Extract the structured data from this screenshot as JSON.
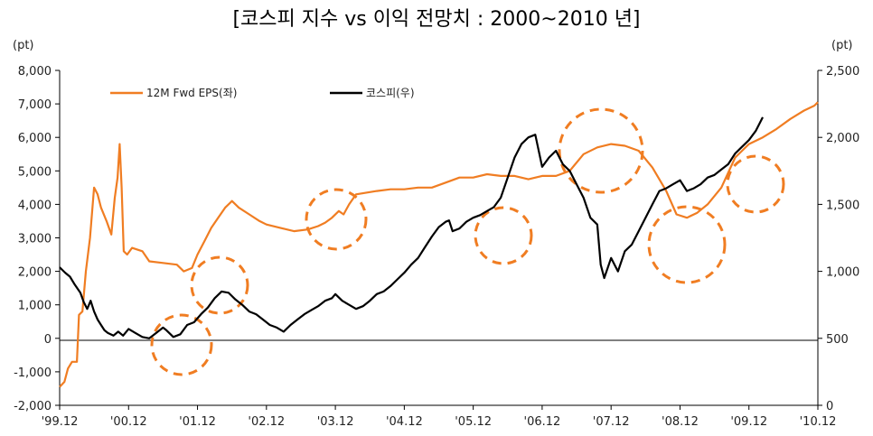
{
  "chart_data": {
    "type": "line",
    "title": "[코스피 지수 vs 이익 전망치 : 2000~2010 년]",
    "left_axis": {
      "unit": "(pt)",
      "range": [
        -2000,
        8000
      ],
      "ticks": [
        "-2,000",
        "-1,000",
        "0",
        "1,000",
        "2,000",
        "3,000",
        "4,000",
        "5,000",
        "6,000",
        "7,000",
        "8,000"
      ],
      "tick_values": [
        -2000,
        -1000,
        0,
        1000,
        2000,
        3000,
        4000,
        5000,
        6000,
        7000,
        8000
      ]
    },
    "right_axis": {
      "unit": "(pt)",
      "range": [
        0,
        2500
      ],
      "ticks": [
        "0",
        "500",
        "1,000",
        "1,500",
        "2,000",
        "2,500"
      ],
      "tick_values": [
        0,
        500,
        1000,
        1500,
        2000,
        2500
      ]
    },
    "x_axis": {
      "range": [
        0,
        11
      ],
      "ticks": [
        "'99.12",
        "'00.12",
        "'01.12",
        "'02.12",
        "'03.12",
        "'04.12",
        "'05.12",
        "'06.12",
        "'07.12",
        "'08.12",
        "'09.12",
        "'10.12"
      ]
    },
    "legend_position": "top-left",
    "series": [
      {
        "name": "12M Fwd EPS(좌)",
        "axis": "left",
        "color": "#F07D22",
        "points": [
          [
            0.0,
            -1450
          ],
          [
            0.07,
            -1300
          ],
          [
            0.12,
            -900
          ],
          [
            0.18,
            -700
          ],
          [
            0.25,
            -700
          ],
          [
            0.28,
            700
          ],
          [
            0.33,
            800
          ],
          [
            0.38,
            2000
          ],
          [
            0.44,
            3000
          ],
          [
            0.5,
            4500
          ],
          [
            0.55,
            4300
          ],
          [
            0.6,
            3900
          ],
          [
            0.68,
            3500
          ],
          [
            0.75,
            3100
          ],
          [
            0.8,
            4200
          ],
          [
            0.84,
            4800
          ],
          [
            0.87,
            5800
          ],
          [
            0.9,
            4500
          ],
          [
            0.93,
            2600
          ],
          [
            0.98,
            2500
          ],
          [
            1.05,
            2700
          ],
          [
            1.2,
            2600
          ],
          [
            1.3,
            2300
          ],
          [
            1.5,
            2250
          ],
          [
            1.7,
            2200
          ],
          [
            1.8,
            2000
          ],
          [
            1.92,
            2100
          ],
          [
            2.0,
            2500
          ],
          [
            2.1,
            2900
          ],
          [
            2.2,
            3300
          ],
          [
            2.3,
            3600
          ],
          [
            2.4,
            3900
          ],
          [
            2.5,
            4100
          ],
          [
            2.6,
            3900
          ],
          [
            2.75,
            3700
          ],
          [
            2.9,
            3500
          ],
          [
            3.0,
            3400
          ],
          [
            3.2,
            3300
          ],
          [
            3.4,
            3200
          ],
          [
            3.6,
            3250
          ],
          [
            3.75,
            3350
          ],
          [
            3.85,
            3450
          ],
          [
            3.95,
            3600
          ],
          [
            4.05,
            3800
          ],
          [
            4.12,
            3700
          ],
          [
            4.2,
            4000
          ],
          [
            4.3,
            4300
          ],
          [
            4.45,
            4350
          ],
          [
            4.6,
            4400
          ],
          [
            4.8,
            4450
          ],
          [
            5.0,
            4450
          ],
          [
            5.2,
            4500
          ],
          [
            5.4,
            4500
          ],
          [
            5.6,
            4650
          ],
          [
            5.8,
            4800
          ],
          [
            6.0,
            4800
          ],
          [
            6.2,
            4900
          ],
          [
            6.4,
            4850
          ],
          [
            6.6,
            4850
          ],
          [
            6.8,
            4750
          ],
          [
            7.0,
            4850
          ],
          [
            7.2,
            4850
          ],
          [
            7.4,
            5000
          ],
          [
            7.6,
            5500
          ],
          [
            7.8,
            5700
          ],
          [
            8.0,
            5800
          ],
          [
            8.2,
            5750
          ],
          [
            8.4,
            5600
          ],
          [
            8.6,
            5100
          ],
          [
            8.8,
            4400
          ],
          [
            8.95,
            3700
          ],
          [
            9.1,
            3600
          ],
          [
            9.25,
            3750
          ],
          [
            9.4,
            4000
          ],
          [
            9.6,
            4500
          ],
          [
            9.8,
            5400
          ],
          [
            10.0,
            5800
          ],
          [
            10.2,
            6000
          ],
          [
            10.4,
            6250
          ],
          [
            10.6,
            6550
          ],
          [
            10.8,
            6800
          ],
          [
            10.95,
            6950
          ],
          [
            11.0,
            7050
          ]
        ]
      },
      {
        "name": "코스피(우)",
        "axis": "right",
        "color": "#000000",
        "points": [
          [
            0.0,
            1030
          ],
          [
            0.08,
            990
          ],
          [
            0.15,
            960
          ],
          [
            0.22,
            900
          ],
          [
            0.3,
            840
          ],
          [
            0.35,
            770
          ],
          [
            0.4,
            720
          ],
          [
            0.45,
            780
          ],
          [
            0.5,
            700
          ],
          [
            0.55,
            640
          ],
          [
            0.6,
            600
          ],
          [
            0.65,
            560
          ],
          [
            0.7,
            540
          ],
          [
            0.78,
            520
          ],
          [
            0.85,
            550
          ],
          [
            0.92,
            520
          ],
          [
            1.0,
            570
          ],
          [
            1.1,
            540
          ],
          [
            1.2,
            510
          ],
          [
            1.3,
            500
          ],
          [
            1.4,
            540
          ],
          [
            1.5,
            580
          ],
          [
            1.55,
            560
          ],
          [
            1.65,
            510
          ],
          [
            1.75,
            530
          ],
          [
            1.85,
            600
          ],
          [
            1.95,
            620
          ],
          [
            2.05,
            680
          ],
          [
            2.15,
            730
          ],
          [
            2.25,
            800
          ],
          [
            2.35,
            850
          ],
          [
            2.45,
            840
          ],
          [
            2.55,
            790
          ],
          [
            2.65,
            750
          ],
          [
            2.75,
            700
          ],
          [
            2.85,
            680
          ],
          [
            2.95,
            640
          ],
          [
            3.05,
            600
          ],
          [
            3.15,
            580
          ],
          [
            3.25,
            550
          ],
          [
            3.35,
            600
          ],
          [
            3.45,
            640
          ],
          [
            3.55,
            680
          ],
          [
            3.65,
            710
          ],
          [
            3.75,
            740
          ],
          [
            3.85,
            780
          ],
          [
            3.95,
            800
          ],
          [
            4.0,
            830
          ],
          [
            4.1,
            780
          ],
          [
            4.2,
            750
          ],
          [
            4.3,
            720
          ],
          [
            4.4,
            740
          ],
          [
            4.5,
            780
          ],
          [
            4.6,
            830
          ],
          [
            4.7,
            850
          ],
          [
            4.8,
            890
          ],
          [
            4.9,
            940
          ],
          [
            5.0,
            990
          ],
          [
            5.1,
            1050
          ],
          [
            5.2,
            1100
          ],
          [
            5.3,
            1180
          ],
          [
            5.4,
            1260
          ],
          [
            5.5,
            1330
          ],
          [
            5.6,
            1370
          ],
          [
            5.65,
            1380
          ],
          [
            5.7,
            1300
          ],
          [
            5.8,
            1320
          ],
          [
            5.9,
            1370
          ],
          [
            6.0,
            1400
          ],
          [
            6.1,
            1420
          ],
          [
            6.2,
            1450
          ],
          [
            6.3,
            1480
          ],
          [
            6.4,
            1550
          ],
          [
            6.5,
            1700
          ],
          [
            6.6,
            1850
          ],
          [
            6.7,
            1950
          ],
          [
            6.8,
            2000
          ],
          [
            6.9,
            2020
          ],
          [
            7.0,
            1780
          ],
          [
            7.1,
            1850
          ],
          [
            7.2,
            1900
          ],
          [
            7.3,
            1800
          ],
          [
            7.4,
            1750
          ],
          [
            7.5,
            1650
          ],
          [
            7.6,
            1550
          ],
          [
            7.7,
            1400
          ],
          [
            7.8,
            1350
          ],
          [
            7.85,
            1050
          ],
          [
            7.9,
            950
          ],
          [
            8.0,
            1100
          ],
          [
            8.05,
            1050
          ],
          [
            8.1,
            1000
          ],
          [
            8.2,
            1150
          ],
          [
            8.3,
            1200
          ],
          [
            8.4,
            1300
          ],
          [
            8.5,
            1400
          ],
          [
            8.6,
            1500
          ],
          [
            8.7,
            1600
          ],
          [
            8.8,
            1620
          ],
          [
            8.9,
            1650
          ],
          [
            9.0,
            1680
          ],
          [
            9.1,
            1600
          ],
          [
            9.2,
            1620
          ],
          [
            9.3,
            1650
          ],
          [
            9.4,
            1700
          ],
          [
            9.5,
            1720
          ],
          [
            9.6,
            1760
          ],
          [
            9.7,
            1800
          ],
          [
            9.8,
            1880
          ],
          [
            9.9,
            1930
          ],
          [
            10.0,
            1980
          ],
          [
            10.1,
            2050
          ],
          [
            10.2,
            2150
          ]
        ]
      }
    ],
    "annotations": "dashed orange circles highlighting divergences"
  }
}
